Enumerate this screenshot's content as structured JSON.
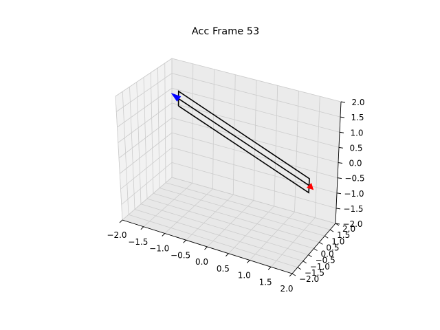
{
  "chart_data": {
    "type": "line",
    "projection": "3d",
    "title": "Acc Frame 53",
    "xlabel": "",
    "ylabel": "",
    "zlabel": "",
    "xlim": [
      -2,
      2
    ],
    "ylim": [
      -2,
      2
    ],
    "zlim": [
      -2,
      2
    ],
    "x_ticks": [
      "−2.0",
      "−1.5",
      "−1.0",
      "−0.5",
      "0.0",
      "0.5",
      "1.0",
      "1.5",
      "2.0"
    ],
    "y_ticks": [
      "−2.0",
      "−1.5",
      "−1.0",
      "−0.5",
      "0.0",
      "0.5",
      "1.0",
      "1.5",
      "2.0"
    ],
    "z_ticks": [
      "−2.0",
      "−1.5",
      "−1.0",
      "−0.5",
      "0.0",
      "0.5",
      "1.0",
      "1.5",
      "2.0"
    ],
    "grid": true,
    "pane_color": "#f2f2f2",
    "series": [
      {
        "color": "#000000",
        "style": "rectangle",
        "points": [
          [
            -1.6,
            1.2,
            0.9
          ],
          [
            -1.45,
            0.7,
            1.65
          ],
          [
            1.55,
            1.3,
            -0.35
          ],
          [
            1.4,
            1.8,
            -1.1
          ],
          [
            -1.6,
            1.2,
            0.9
          ]
        ]
      },
      {
        "color": "#000000",
        "style": "centerline",
        "points": [
          [
            -1.52,
            0.95,
            1.27
          ],
          [
            1.48,
            1.55,
            -0.72
          ]
        ]
      },
      {
        "color": "#0000ff",
        "style": "arrow",
        "points": [
          [
            -1.52,
            0.95,
            1.27
          ],
          [
            -1.55,
            0.5,
            1.6
          ]
        ]
      },
      {
        "color": "#ff0000",
        "style": "arrow",
        "points": [
          [
            1.48,
            1.55,
            -0.72
          ],
          [
            1.45,
            2.0,
            -1.05
          ]
        ]
      }
    ]
  }
}
